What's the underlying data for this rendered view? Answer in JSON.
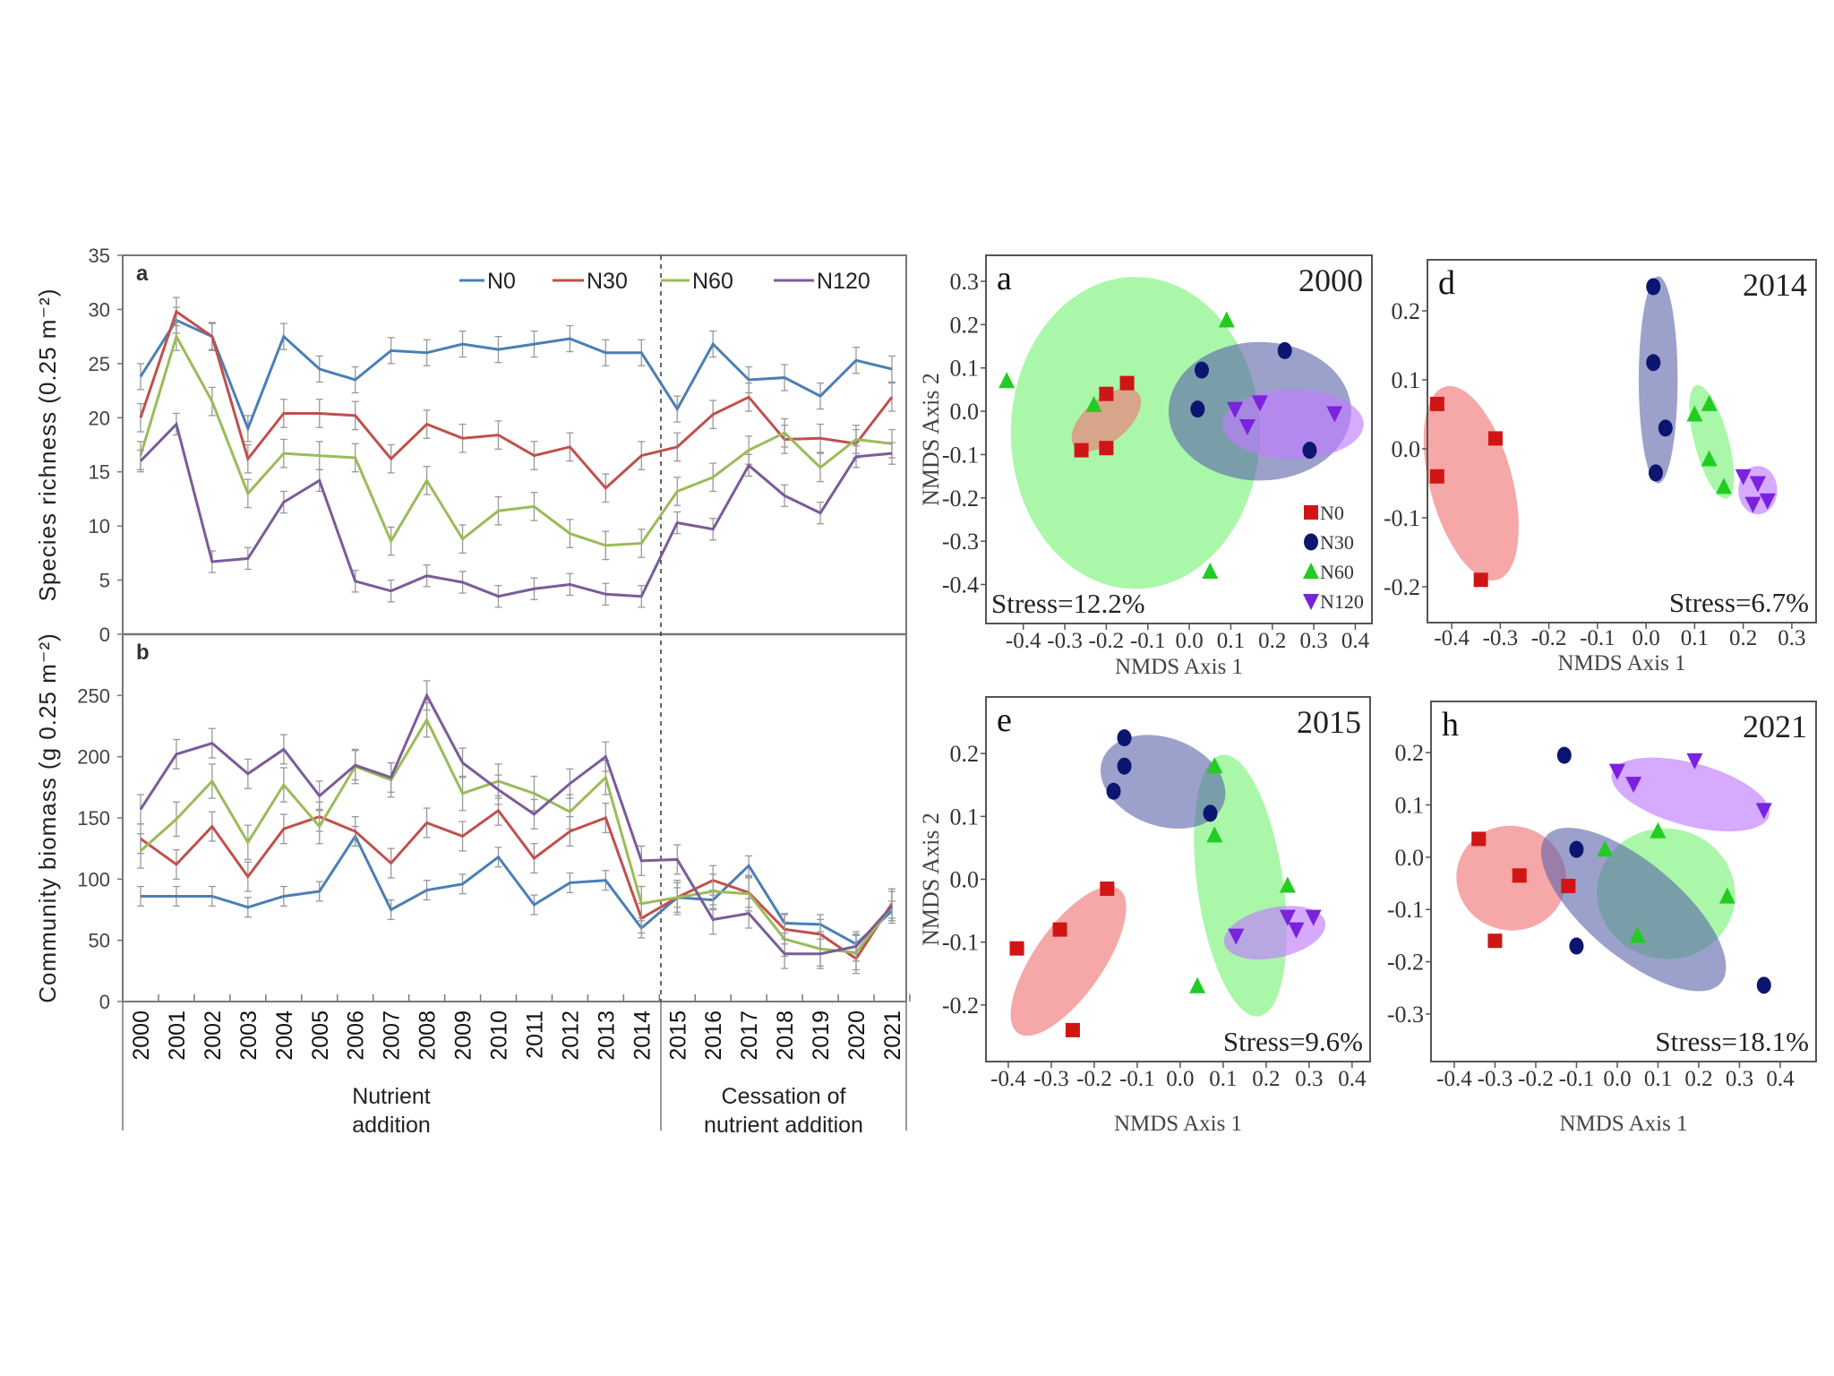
{
  "colors": {
    "N0": "#4a7fb5",
    "N30": "#c0504d",
    "N60": "#9bbb59",
    "N120": "#7b5b9a"
  },
  "nmds_colors": {
    "N0": {
      "marker": "#d01515",
      "fill": "#f07a78"
    },
    "N30": {
      "marker": "#0c1670",
      "fill": "#5a63a8"
    },
    "N60": {
      "marker": "#22cc22",
      "fill": "#7cf27c"
    },
    "N120": {
      "marker": "#7a22dd",
      "fill": "#c07cff"
    }
  },
  "chart_data": [
    {
      "type": "line",
      "panel": "a",
      "ylabel": "Species richness (0.25 m⁻²)",
      "ylim": [
        0,
        35
      ],
      "yticks": [
        0,
        5,
        10,
        15,
        20,
        25,
        30,
        35
      ],
      "x": [
        "2000",
        "2001",
        "2002",
        "2003",
        "2004",
        "2005",
        "2006",
        "2007",
        "2008",
        "2009",
        "2010",
        "2011",
        "2012",
        "2013",
        "2014",
        "2015",
        "2016",
        "2017",
        "2018",
        "2019",
        "2020",
        "2021"
      ],
      "legend": "top-right",
      "error_bars": true,
      "series": [
        {
          "name": "N0",
          "values": [
            23.8,
            29,
            27.5,
            19,
            27.5,
            24.5,
            23.5,
            26.2,
            26,
            26.8,
            26.3,
            26.8,
            27.3,
            26,
            26,
            20.8,
            26.8,
            23.5,
            23.7,
            22,
            25.3,
            24.5
          ],
          "error": 1.2
        },
        {
          "name": "N30",
          "values": [
            20,
            29.8,
            27.5,
            16.2,
            20.4,
            20.4,
            20.2,
            16.2,
            19.4,
            18.1,
            18.4,
            16.5,
            17.3,
            13.5,
            16.5,
            17.3,
            20.3,
            21.9,
            18,
            18.1,
            17.6,
            21.9
          ],
          "error": 1.3
        },
        {
          "name": "N60",
          "values": [
            16.5,
            27.5,
            21.5,
            13,
            16.7,
            16.5,
            16.3,
            8.6,
            14.2,
            8.8,
            11.4,
            11.8,
            9.3,
            8.2,
            8.4,
            13.2,
            14.5,
            17,
            18.6,
            15.4,
            18,
            17.6
          ],
          "error": 1.3
        },
        {
          "name": "N120",
          "values": [
            16,
            19.4,
            6.7,
            7,
            12.2,
            14.2,
            4.9,
            4,
            5.4,
            4.8,
            3.5,
            4.2,
            4.6,
            3.7,
            3.5,
            10.3,
            9.7,
            15.6,
            12.8,
            11.2,
            16.4,
            16.7
          ],
          "error": 1.0
        }
      ]
    },
    {
      "type": "line",
      "panel": "b",
      "ylabel": "Community biomass (g 0.25 m⁻²)",
      "ylim": [
        0,
        300
      ],
      "yticks": [
        0,
        50,
        100,
        150,
        200,
        250
      ],
      "x": [
        "2000",
        "2001",
        "2002",
        "2003",
        "2004",
        "2005",
        "2006",
        "2007",
        "2008",
        "2009",
        "2010",
        "2011",
        "2012",
        "2013",
        "2014",
        "2015",
        "2016",
        "2017",
        "2018",
        "2019",
        "2020",
        "2021"
      ],
      "error_bars": true,
      "series": [
        {
          "name": "N0",
          "values": [
            86,
            86,
            86,
            77,
            86,
            90,
            135,
            75,
            91,
            96,
            118,
            79,
            97,
            99,
            60,
            85,
            83,
            111,
            64,
            63,
            47,
            74
          ],
          "error": 8
        },
        {
          "name": "N30",
          "values": [
            133,
            112,
            143,
            102,
            141,
            151,
            139,
            113,
            146,
            135,
            156,
            117,
            139,
            150,
            68,
            85,
            99,
            89,
            59,
            55,
            35,
            80
          ],
          "error": 12
        },
        {
          "name": "N60",
          "values": [
            123,
            149,
            180,
            130,
            177,
            143,
            192,
            181,
            230,
            170,
            180,
            170,
            155,
            183,
            80,
            85,
            90,
            88,
            51,
            43,
            40,
            78
          ],
          "error": 14
        },
        {
          "name": "N120",
          "values": [
            157,
            202,
            211,
            186,
            206,
            168,
            193,
            183,
            250,
            195,
            173,
            153,
            178,
            200,
            115,
            116,
            67,
            72,
            39,
            39,
            45,
            78
          ],
          "error": 12
        }
      ],
      "periods": [
        {
          "lines": [
            "Nutrient",
            "addition"
          ],
          "from": "2000",
          "to": "2014"
        },
        {
          "lines": [
            "Cessation of",
            "nutrient addition"
          ],
          "from": "2015",
          "to": "2021"
        }
      ]
    },
    {
      "type": "scatter",
      "panel": "a",
      "year": "2000",
      "stress": "Stress=12.2%",
      "xlabel": "NMDS Axis 1",
      "ylabel": "NMDS Axis 2",
      "xlim": [
        -0.49,
        0.44
      ],
      "ylim": [
        -0.49,
        0.36
      ],
      "xticks": [
        "-0.4",
        "-0.3",
        "-0.2",
        "-0.1",
        "0.0",
        "0.1",
        "0.2",
        "0.3",
        "0.4"
      ],
      "yticks": [
        "0.3",
        "0.2",
        "0.1",
        "0.0",
        "-0.1",
        "-0.2",
        "-0.3",
        "-0.4"
      ],
      "legend": "bottom-right",
      "stress_position": "bottom-left",
      "groups": [
        {
          "name": "N0",
          "points": [
            [
              -0.26,
              -0.09
            ],
            [
              -0.2,
              0.04
            ],
            [
              -0.15,
              0.065
            ],
            [
              -0.2,
              -0.085
            ]
          ],
          "ellipse": {
            "cx": -0.2,
            "cy": -0.02,
            "rx": 0.1,
            "ry": 0.05,
            "angle": -40
          }
        },
        {
          "name": "N30",
          "points": [
            [
              0.03,
              0.095
            ],
            [
              0.02,
              0.005
            ],
            [
              0.23,
              0.14
            ],
            [
              0.29,
              -0.09
            ]
          ],
          "ellipse": {
            "cx": 0.17,
            "cy": 0.0,
            "rx": 0.22,
            "ry": 0.16,
            "angle": 0
          }
        },
        {
          "name": "N60",
          "points": [
            [
              -0.44,
              0.07
            ],
            [
              -0.23,
              0.015
            ],
            [
              0.09,
              0.21
            ],
            [
              0.05,
              -0.37
            ]
          ],
          "ellipse": {
            "cx": -0.13,
            "cy": -0.05,
            "rx": 0.3,
            "ry": 0.36,
            "angle": 0
          }
        },
        {
          "name": "N120",
          "points": [
            [
              0.11,
              0.005
            ],
            [
              0.14,
              -0.035
            ],
            [
              0.17,
              0.02
            ],
            [
              0.35,
              -0.005
            ]
          ],
          "ellipse": {
            "cx": 0.25,
            "cy": -0.03,
            "rx": 0.17,
            "ry": 0.08,
            "angle": 0
          }
        }
      ]
    },
    {
      "type": "scatter",
      "panel": "d",
      "year": "2014",
      "stress": "Stress=6.7%",
      "xlabel": "NMDS Axis 1",
      "ylabel": "",
      "xlim": [
        -0.45,
        0.35
      ],
      "ylim": [
        -0.252,
        0.274
      ],
      "xticks": [
        "-0.4",
        "-0.3",
        "-0.2",
        "-0.1",
        "0.0",
        "0.1",
        "0.2",
        "0.3"
      ],
      "yticks": [
        "0.2",
        "0.1",
        "0.0",
        "-0.1",
        "-0.2"
      ],
      "stress_position": "bottom-right",
      "groups": [
        {
          "name": "N0",
          "points": [
            [
              -0.43,
              0.065
            ],
            [
              -0.43,
              -0.04
            ],
            [
              -0.31,
              0.015
            ],
            [
              -0.34,
              -0.19
            ]
          ],
          "ellipse": {
            "cx": -0.36,
            "cy": -0.05,
            "rx": 0.085,
            "ry": 0.145,
            "angle": -15
          }
        },
        {
          "name": "N30",
          "points": [
            [
              0.015,
              0.235
            ],
            [
              0.015,
              0.125
            ],
            [
              0.04,
              0.03
            ],
            [
              0.02,
              -0.035
            ]
          ],
          "ellipse": {
            "cx": 0.025,
            "cy": 0.1,
            "rx": 0.04,
            "ry": 0.15,
            "angle": 0
          }
        },
        {
          "name": "N60",
          "points": [
            [
              0.1,
              0.05
            ],
            [
              0.13,
              0.065
            ],
            [
              0.13,
              -0.015
            ],
            [
              0.16,
              -0.055
            ]
          ],
          "ellipse": {
            "cx": 0.135,
            "cy": 0.01,
            "rx": 0.035,
            "ry": 0.085,
            "angle": -15
          }
        },
        {
          "name": "N120",
          "points": [
            [
              0.2,
              -0.04
            ],
            [
              0.23,
              -0.05
            ],
            [
              0.22,
              -0.08
            ],
            [
              0.25,
              -0.075
            ]
          ],
          "ellipse": {
            "cx": 0.23,
            "cy": -0.06,
            "rx": 0.04,
            "ry": 0.035,
            "angle": 0
          }
        }
      ]
    },
    {
      "type": "scatter",
      "panel": "e",
      "year": "2015",
      "stress": "Stress=9.6%",
      "xlabel": "NMDS Axis 1",
      "ylabel": "NMDS Axis 2",
      "xlim": [
        -0.452,
        0.442
      ],
      "ylim": [
        -0.29,
        0.29
      ],
      "xticks": [
        "-0.4",
        "-0.3",
        "-0.2",
        "-0.1",
        "0.0",
        "0.1",
        "0.2",
        "0.3",
        "0.4"
      ],
      "yticks": [
        "0.2",
        "0.1",
        "0.0",
        "-0.1",
        "-0.2"
      ],
      "stress_position": "bottom-right",
      "groups": [
        {
          "name": "N0",
          "points": [
            [
              -0.38,
              -0.11
            ],
            [
              -0.28,
              -0.08
            ],
            [
              -0.17,
              -0.015
            ],
            [
              -0.25,
              -0.24
            ]
          ],
          "ellipse": {
            "cx": -0.26,
            "cy": -0.13,
            "rx": 0.08,
            "ry": 0.14,
            "angle": 35
          }
        },
        {
          "name": "N30",
          "points": [
            [
              -0.13,
              0.225
            ],
            [
              -0.13,
              0.18
            ],
            [
              -0.155,
              0.14
            ],
            [
              0.07,
              0.105
            ]
          ],
          "ellipse": {
            "cx": -0.04,
            "cy": 0.155,
            "rx": 0.15,
            "ry": 0.07,
            "angle": 20
          }
        },
        {
          "name": "N60",
          "points": [
            [
              0.08,
              0.18
            ],
            [
              0.08,
              0.07
            ],
            [
              0.25,
              -0.01
            ],
            [
              0.04,
              -0.17
            ]
          ],
          "ellipse": {
            "cx": 0.14,
            "cy": -0.01,
            "rx": 0.1,
            "ry": 0.21,
            "angle": -8
          }
        },
        {
          "name": "N120",
          "points": [
            [
              0.13,
              -0.09
            ],
            [
              0.25,
              -0.06
            ],
            [
              0.27,
              -0.08
            ],
            [
              0.31,
              -0.06
            ]
          ],
          "ellipse": {
            "cx": 0.22,
            "cy": -0.085,
            "rx": 0.12,
            "ry": 0.04,
            "angle": -12
          }
        }
      ]
    },
    {
      "type": "scatter",
      "panel": "h",
      "year": "2021",
      "stress": "Stress=18.1%",
      "xlabel": "NMDS Axis 1",
      "ylabel": "",
      "xlim": [
        -0.457,
        0.488
      ],
      "ylim": [
        -0.391,
        0.298
      ],
      "xticks": [
        "-0.4",
        "-0.3",
        "-0.2",
        "-0.1",
        "0.0",
        "0.1",
        "0.2",
        "0.3",
        "0.4"
      ],
      "yticks": [
        "0.2",
        "0.1",
        "0.0",
        "-0.1",
        "-0.2",
        "-0.3"
      ],
      "stress_position": "bottom-right",
      "groups": [
        {
          "name": "N0",
          "points": [
            [
              -0.34,
              0.035
            ],
            [
              -0.24,
              -0.035
            ],
            [
              -0.12,
              -0.055
            ],
            [
              -0.3,
              -0.16
            ]
          ],
          "ellipse": {
            "cx": -0.26,
            "cy": -0.04,
            "rx": 0.135,
            "ry": 0.1,
            "angle": 10
          }
        },
        {
          "name": "N30",
          "points": [
            [
              -0.13,
              0.195
            ],
            [
              -0.1,
              0.015
            ],
            [
              -0.1,
              -0.17
            ],
            [
              0.36,
              -0.245
            ]
          ],
          "ellipse": {
            "cx": 0.04,
            "cy": -0.1,
            "rx": 0.28,
            "ry": 0.09,
            "angle": 40
          }
        },
        {
          "name": "N60",
          "points": [
            [
              -0.03,
              0.015
            ],
            [
              0.1,
              0.05
            ],
            [
              0.05,
              -0.15
            ],
            [
              0.27,
              -0.075
            ]
          ],
          "ellipse": {
            "cx": 0.12,
            "cy": -0.07,
            "rx": 0.17,
            "ry": 0.125,
            "angle": 10
          }
        },
        {
          "name": "N120",
          "points": [
            [
              0.0,
              0.165
            ],
            [
              0.04,
              0.14
            ],
            [
              0.19,
              0.185
            ],
            [
              0.36,
              0.09
            ]
          ],
          "ellipse": {
            "cx": 0.18,
            "cy": 0.12,
            "rx": 0.2,
            "ry": 0.06,
            "angle": 15
          }
        }
      ]
    }
  ]
}
